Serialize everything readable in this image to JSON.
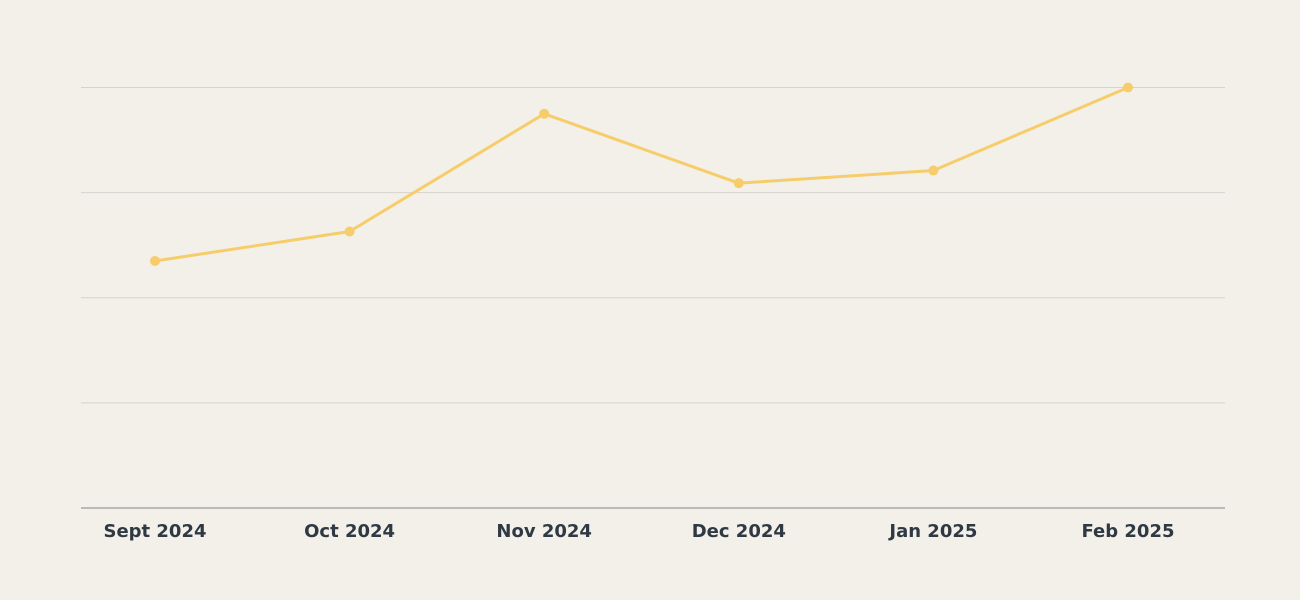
{
  "colors": {
    "background": "#f3f0ea",
    "gridline": "#d6d3ce",
    "axis": "#a9a7a3",
    "series": "#f6cd6a",
    "tick_text": "#2f3944"
  },
  "chart_data": {
    "type": "line",
    "title": "",
    "xlabel": "",
    "ylabel": "",
    "categories": [
      "Sept 2024",
      "Oct 2024",
      "Nov 2024",
      "Dec 2024",
      "Jan 2025",
      "Feb 2025"
    ],
    "series": [
      {
        "values": [
          2.35,
          2.63,
          3.75,
          3.09,
          3.21,
          4.0
        ]
      }
    ],
    "ylim": [
      0,
      4
    ],
    "y_gridlines": [
      1,
      2,
      3,
      4
    ],
    "y_tick_labels_shown": false,
    "grid": true,
    "legend": "none"
  }
}
